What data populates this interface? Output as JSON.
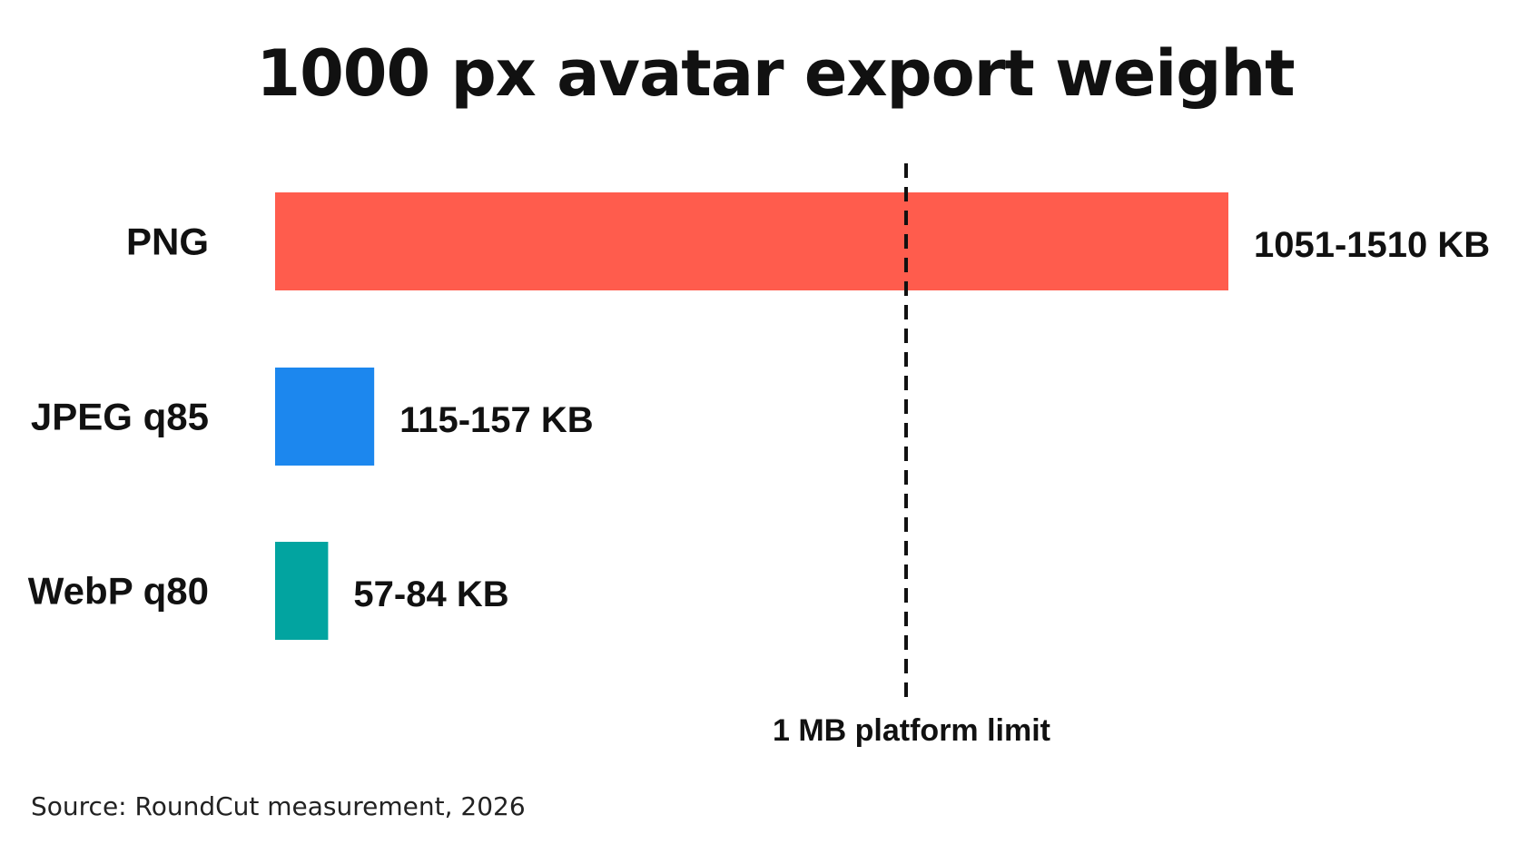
{
  "chart_data": {
    "type": "bar",
    "orientation": "horizontal",
    "title": "1000 px avatar export weight",
    "xlabel": "",
    "ylabel": "",
    "unit": "KB",
    "xlim": [
      0,
      1510
    ],
    "grid": false,
    "legend": "none",
    "categories": [
      "PNG",
      "JPEG q85",
      "WebP q80"
    ],
    "series": [
      {
        "ranges": [
          [
            1051,
            1510
          ],
          [
            115,
            157
          ],
          [
            57,
            84
          ]
        ],
        "labels": [
          "1051-1510 KB",
          "115-157 KB",
          "57-84 KB"
        ],
        "colors": [
          "#ff5c4d",
          "#1c87ee",
          "#02a4a0"
        ]
      }
    ],
    "reference_line": {
      "value": 1000,
      "style": "dashed",
      "label": "1 MB platform limit"
    },
    "source": "Source: RoundCut measurement, 2026"
  }
}
